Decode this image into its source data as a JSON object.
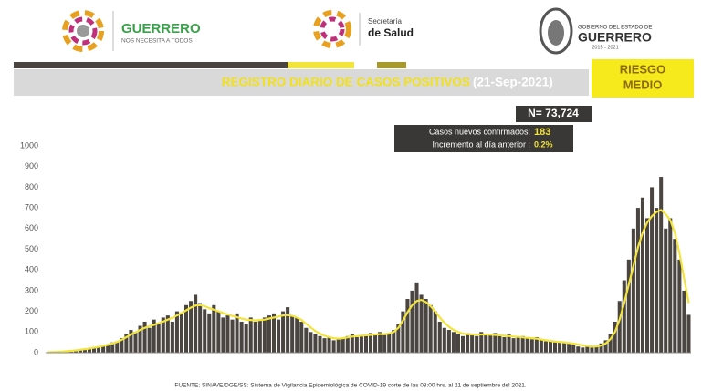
{
  "header": {
    "logo1_title": "GUERRERO",
    "logo1_subtitle": "NOS NECESITA A TODOS",
    "logo2_line1": "Secretaría",
    "logo2_line2": "de Salud",
    "logo3_line1": "GOBIERNO DEL ESTADO DE",
    "logo3_line2": "GUERRERO",
    "logo3_line3": "2015 - 2021"
  },
  "banner": {
    "title": "REGISTRO DIARIO DE CASOS POSITIVOS",
    "date": "(21-Sep-2021)",
    "risk_line1": "RIESGO",
    "risk_line2": "MEDIO"
  },
  "summary": {
    "total": "N= 73,724",
    "new_label": "Casos nuevos confirmados:",
    "new_value": "183",
    "increase_label": "Incremento al día anterior :",
    "increase_value": "0.2%"
  },
  "footnote": "FUENTE: SINAVE/DGE/SS: Sistema de Vigilancia Epidemiológica de COVID-19 corte de las 08:00 hrs. al 21 de septiembre del 2021.",
  "chart_data": {
    "type": "bar",
    "ylim": [
      0,
      1000
    ],
    "yticks": [
      0,
      100,
      200,
      300,
      400,
      500,
      600,
      700,
      800,
      900,
      1000
    ],
    "series": [
      {
        "type": "bar",
        "color": "#4a4540",
        "values": [
          2,
          3,
          5,
          4,
          8,
          10,
          12,
          15,
          18,
          20,
          25,
          30,
          35,
          40,
          50,
          55,
          70,
          90,
          110,
          100,
          130,
          150,
          120,
          160,
          140,
          170,
          180,
          150,
          200,
          190,
          230,
          250,
          280,
          240,
          210,
          190,
          230,
          200,
          170,
          180,
          160,
          190,
          150,
          140,
          170,
          150,
          160,
          170,
          180,
          190,
          160,
          200,
          220,
          180,
          170,
          150,
          120,
          100,
          90,
          80,
          70,
          75,
          60,
          65,
          70,
          80,
          90,
          75,
          85,
          80,
          95,
          90,
          100,
          85,
          90,
          110,
          140,
          200,
          260,
          300,
          340,
          280,
          260,
          230,
          200,
          150,
          120,
          110,
          100,
          90,
          80,
          95,
          85,
          80,
          100,
          90,
          85,
          95,
          80,
          75,
          90,
          70,
          75,
          80,
          70,
          65,
          75,
          60,
          55,
          60,
          50,
          55,
          50,
          45,
          40,
          30,
          25,
          30,
          25,
          30,
          45,
          60,
          90,
          150,
          250,
          350,
          450,
          600,
          700,
          750,
          650,
          800,
          700,
          850,
          600,
          650,
          550,
          450,
          300,
          183
        ]
      },
      {
        "type": "line",
        "color": "#f2e43a",
        "values": [
          2,
          3,
          4,
          5,
          7,
          9,
          11,
          14,
          17,
          20,
          24,
          28,
          33,
          38,
          45,
          52,
          62,
          75,
          88,
          98,
          110,
          120,
          128,
          135,
          142,
          150,
          160,
          168,
          180,
          192,
          205,
          218,
          228,
          230,
          225,
          215,
          208,
          200,
          192,
          185,
          178,
          172,
          165,
          160,
          158,
          156,
          158,
          160,
          165,
          170,
          175,
          180,
          182,
          178,
          170,
          158,
          140,
          122,
          105,
          92,
          82,
          75,
          70,
          68,
          70,
          74,
          78,
          80,
          82,
          84,
          86,
          88,
          90,
          90,
          92,
          100,
          120,
          155,
          195,
          230,
          250,
          255,
          245,
          225,
          200,
          170,
          145,
          125,
          110,
          100,
          92,
          90,
          88,
          87,
          88,
          88,
          87,
          86,
          84,
          82,
          80,
          78,
          76,
          74,
          72,
          70,
          68,
          64,
          60,
          57,
          54,
          52,
          50,
          47,
          44,
          40,
          35,
          32,
          30,
          30,
          35,
          45,
          65,
          100,
          160,
          240,
          330,
          420,
          510,
          580,
          630,
          660,
          680,
          690,
          670,
          640,
          580,
          480,
          360,
          240
        ]
      }
    ]
  }
}
